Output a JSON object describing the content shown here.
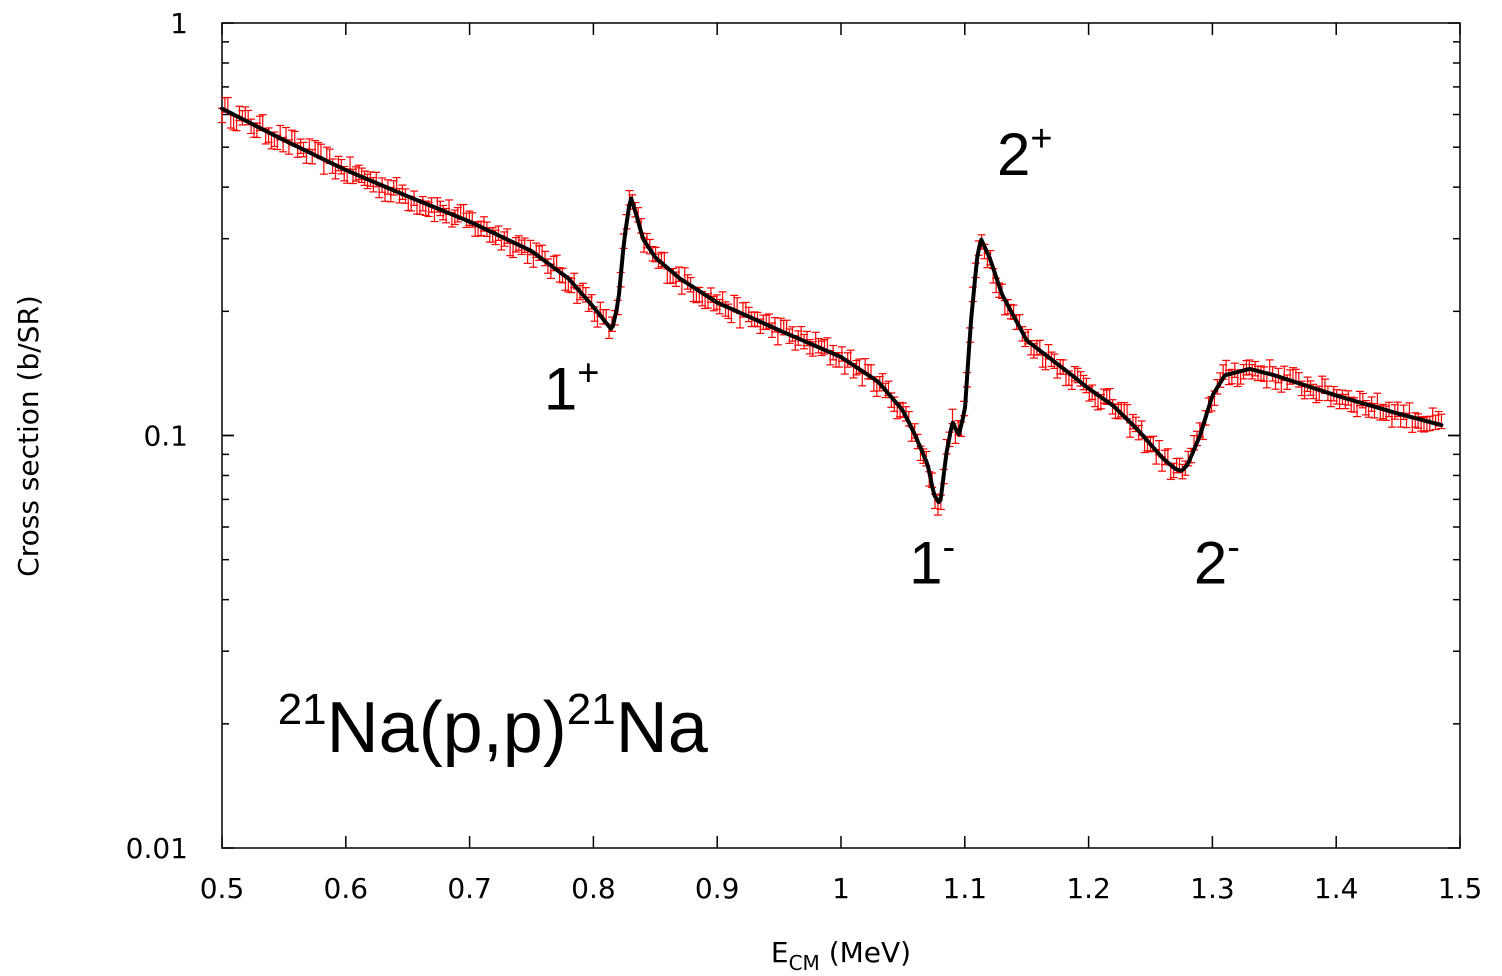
{
  "chart_data": {
    "type": "scatter",
    "title": "",
    "xlabel": {
      "main": "E",
      "sub": "CM",
      "rest": " (MeV)"
    },
    "ylabel": "Cross section (b/SR)",
    "xlim": [
      0.5,
      1.5
    ],
    "ylim": [
      0.01,
      1
    ],
    "yscale": "log",
    "grid": false,
    "x_ticks": [
      0.5,
      0.6,
      0.7,
      0.8,
      0.9,
      1,
      1.1,
      1.2,
      1.3,
      1.4,
      1.5
    ],
    "x_tick_labels": [
      "0.5",
      "0.6",
      "0.7",
      "0.8",
      "0.9",
      "1",
      "1.1",
      "1.2",
      "1.3",
      "1.4",
      "1.5"
    ],
    "y_ticks": [
      0.01,
      0.1,
      1
    ],
    "y_tick_labels": [
      "0.01",
      "0.1",
      "1"
    ],
    "series": [
      {
        "kind": "data-with-errorbars",
        "color": "#ff0000",
        "x_range": [
          0.5,
          1.485
        ],
        "relative_error": 0.04
      },
      {
        "kind": "fit-curve",
        "color": "#000000",
        "x": [
          0.5,
          0.55,
          0.6,
          0.65,
          0.7,
          0.75,
          0.78,
          0.8,
          0.81,
          0.815,
          0.82,
          0.825,
          0.83,
          0.835,
          0.84,
          0.85,
          0.87,
          0.9,
          0.95,
          1.0,
          1.03,
          1.05,
          1.06,
          1.07,
          1.075,
          1.08,
          1.085,
          1.09,
          1.095,
          1.1,
          1.105,
          1.11,
          1.113,
          1.12,
          1.13,
          1.15,
          1.18,
          1.2,
          1.22,
          1.24,
          1.26,
          1.27,
          1.275,
          1.28,
          1.29,
          1.3,
          1.31,
          1.33,
          1.35,
          1.4,
          1.45,
          1.485
        ],
        "y": [
          0.62,
          0.52,
          0.44,
          0.38,
          0.33,
          0.28,
          0.24,
          0.205,
          0.188,
          0.18,
          0.21,
          0.3,
          0.38,
          0.34,
          0.3,
          0.27,
          0.24,
          0.21,
          0.18,
          0.155,
          0.135,
          0.115,
          0.1,
          0.085,
          0.072,
          0.068,
          0.09,
          0.108,
          0.1,
          0.115,
          0.19,
          0.27,
          0.3,
          0.27,
          0.22,
          0.17,
          0.145,
          0.13,
          0.118,
          0.103,
          0.088,
          0.083,
          0.082,
          0.085,
          0.1,
          0.125,
          0.14,
          0.145,
          0.14,
          0.125,
          0.113,
          0.106
        ]
      }
    ],
    "annotations": [
      {
        "base": "1",
        "sup": "+",
        "x": 0.76,
        "y": 0.1155
      },
      {
        "base": "2",
        "sup": "+",
        "x": 1.126,
        "y": 0.428
      },
      {
        "base": "1",
        "sup": "-",
        "x": 1.055,
        "y": 0.0438
      },
      {
        "base": "2",
        "sup": "-",
        "x": 1.285,
        "y": 0.0438
      }
    ],
    "reaction_label": {
      "sup1": "21",
      "mid": "Na(p,p)",
      "sup2": "21",
      "end": "Na",
      "x": 0.545,
      "y": 0.0171
    }
  }
}
